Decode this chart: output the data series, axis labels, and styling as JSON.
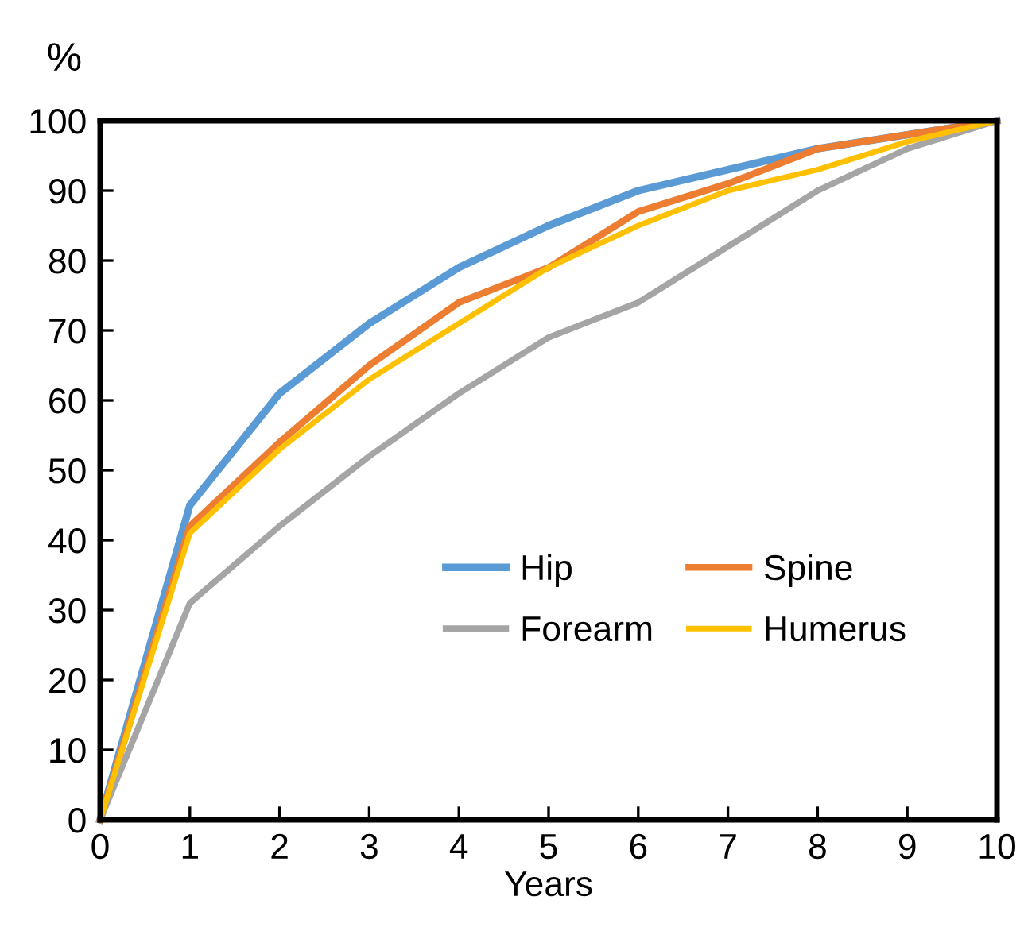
{
  "chart_data": {
    "type": "line",
    "xlabel": "Years",
    "ylabel": "%",
    "x": [
      0,
      1,
      2,
      3,
      4,
      5,
      6,
      7,
      8,
      9,
      10
    ],
    "series": [
      {
        "name": "Hip",
        "color": "#5b9bd5",
        "values": [
          0,
          45,
          61,
          71,
          79,
          85,
          90,
          93,
          96,
          98,
          100
        ]
      },
      {
        "name": "Spine",
        "color": "#ed7d31",
        "values": [
          0,
          42,
          54,
          65,
          74,
          79,
          87,
          91,
          96,
          98,
          100
        ]
      },
      {
        "name": "Forearm",
        "color": "#a5a5a5",
        "values": [
          0,
          31,
          42,
          52,
          61,
          69,
          74,
          82,
          90,
          96,
          100
        ]
      },
      {
        "name": "Humerus",
        "color": "#ffc000",
        "values": [
          0,
          41,
          53,
          63,
          71,
          79,
          85,
          90,
          93,
          97,
          100
        ]
      }
    ],
    "xlim": [
      0,
      10
    ],
    "xticks": [
      0,
      1,
      2,
      3,
      4,
      5,
      6,
      7,
      8,
      9,
      10
    ],
    "ylim": [
      0,
      100
    ],
    "yticks": [
      0,
      10,
      20,
      30,
      40,
      50,
      60,
      70,
      80,
      90,
      100
    ],
    "grid": false,
    "legend": "right",
    "marker": "none",
    "line_style": "solid"
  }
}
